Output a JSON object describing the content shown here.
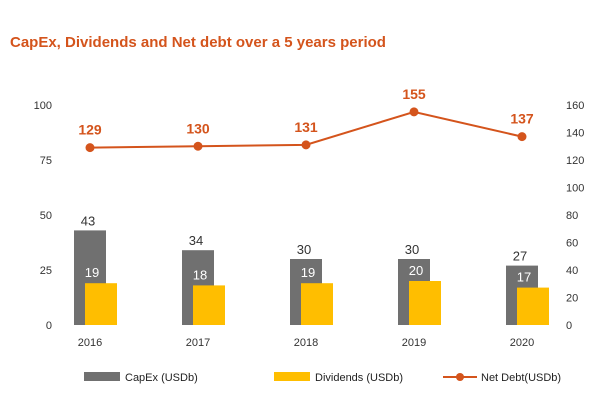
{
  "chart_data": {
    "type": "bar",
    "title": "CapEx, Dividends and Net debt over a 5 years period",
    "categories": [
      "2016",
      "2017",
      "2018",
      "2019",
      "2020"
    ],
    "series": [
      {
        "name": "CapEx (USDb)",
        "kind": "bar",
        "axis": "left",
        "color": "#707070",
        "values": [
          43,
          34,
          30,
          30,
          27
        ]
      },
      {
        "name": "Dividends (USDb)",
        "kind": "bar",
        "axis": "left",
        "color": "#FFBE00",
        "values": [
          19,
          18,
          19,
          20,
          17
        ]
      },
      {
        "name": "Net Debt(USDb)",
        "kind": "line",
        "axis": "right",
        "color": "#D4541C",
        "values": [
          129,
          130,
          131,
          155,
          137
        ]
      }
    ],
    "y_left": {
      "range": [
        0,
        100
      ],
      "ticks": [
        0,
        25,
        50,
        75,
        100
      ]
    },
    "y_right": {
      "range": [
        0,
        160
      ],
      "ticks": [
        0,
        20,
        40,
        60,
        80,
        100,
        120,
        140,
        160
      ]
    },
    "legend": "bottom",
    "grid": false
  },
  "colors": {
    "title": "#D4541C",
    "value_label_on_bar": "#FFFFFF",
    "value_label_above": "#333333"
  }
}
